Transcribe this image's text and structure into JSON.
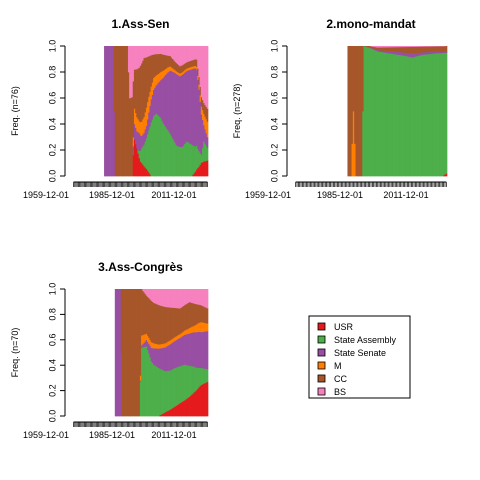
{
  "chart_data": [
    {
      "type": "area",
      "stacking": "proportion",
      "title": "1.Ass-Sen",
      "ylabel": "Freq. (n=76)",
      "ylim": [
        0,
        1
      ],
      "yticks": [
        "0.0",
        "0.2",
        "0.4",
        "0.6",
        "0.8",
        "1.0"
      ],
      "xtick_labels": [
        "1959-12-01",
        "1985-12-01",
        "2011-12-01"
      ],
      "x_start": "1959-12-01",
      "x_end": "2015-12-01",
      "x_step_months": 6,
      "data_start": "1972-12-01",
      "series": [
        {
          "name": "USR",
          "knots": [
            [
              "1972-12-01",
              0
            ],
            [
              "1984-06-01",
              0
            ],
            [
              "1985-06-01",
              0.28
            ],
            [
              "1987-12-01",
              0.12
            ],
            [
              "1990-06-01",
              0.06
            ],
            [
              "1992-06-01",
              0
            ],
            [
              "2009-06-01",
              0
            ],
            [
              "2011-06-01",
              0.05
            ],
            [
              "2013-06-01",
              0.1
            ],
            [
              "2015-12-01",
              0.12
            ]
          ]
        },
        {
          "name": "State Assembly",
          "knots": [
            [
              "1972-12-01",
              0
            ],
            [
              "1986-06-01",
              0
            ],
            [
              "1988-06-01",
              0.12
            ],
            [
              "1990-06-01",
              0.25
            ],
            [
              "1992-06-01",
              0.42
            ],
            [
              "1994-06-01",
              0.45
            ],
            [
              "1997-06-01",
              0.35
            ],
            [
              "2000-06-01",
              0.3
            ],
            [
              "2002-12-01",
              0.22
            ],
            [
              "2005-06-01",
              0.22
            ],
            [
              "2007-06-01",
              0.28
            ],
            [
              "2009-06-01",
              0.25
            ],
            [
              "2011-06-01",
              0.18
            ],
            [
              "2013-06-01",
              0.06
            ],
            [
              "2014-06-01",
              0.15
            ],
            [
              "2015-12-01",
              0.1
            ]
          ]
        },
        {
          "name": "State Senate",
          "knots": [
            [
              "1972-12-01",
              1
            ],
            [
              "1976-06-01",
              1
            ],
            [
              "1977-06-01",
              0
            ],
            [
              "1984-06-01",
              0
            ],
            [
              "1985-06-01",
              0.12
            ],
            [
              "1987-06-01",
              0.15
            ],
            [
              "1988-06-01",
              0.1
            ],
            [
              "1990-06-01",
              0.1
            ],
            [
              "1992-06-01",
              0.18
            ],
            [
              "1994-06-01",
              0.2
            ],
            [
              "1996-06-01",
              0.25
            ],
            [
              "1998-06-01",
              0.35
            ],
            [
              "2000-06-01",
              0.45
            ],
            [
              "2003-06-01",
              0.52
            ],
            [
              "2006-06-01",
              0.55
            ],
            [
              "2009-06-01",
              0.6
            ],
            [
              "2010-12-01",
              0.62
            ],
            [
              "2012-06-01",
              0.48
            ],
            [
              "2013-06-01",
              0.3
            ],
            [
              "2014-06-01",
              0.12
            ],
            [
              "2015-12-01",
              0.08
            ]
          ]
        },
        {
          "name": "M",
          "knots": [
            [
              "1972-12-01",
              0
            ],
            [
              "1984-06-01",
              0
            ],
            [
              "1985-06-01",
              0.12
            ],
            [
              "1987-06-01",
              0.1
            ],
            [
              "1990-06-01",
              0.15
            ],
            [
              "1992-06-01",
              0.1
            ],
            [
              "1995-06-01",
              0.06
            ],
            [
              "1998-06-01",
              0.04
            ],
            [
              "2002-06-01",
              0.02
            ],
            [
              "2011-06-01",
              0.02
            ],
            [
              "2013-06-01",
              0.06
            ],
            [
              "2015-12-01",
              0.12
            ]
          ]
        },
        {
          "name": "CC",
          "knots": [
            [
              "1972-12-01",
              0
            ],
            [
              "1976-06-01",
              0
            ],
            [
              "1977-06-01",
              1
            ],
            [
              "1982-06-01",
              1
            ],
            [
              "1983-06-01",
              0.6
            ],
            [
              "1985-06-01",
              0.3
            ],
            [
              "1987-06-01",
              0.45
            ],
            [
              "1989-06-01",
              0.5
            ],
            [
              "1991-06-01",
              0.32
            ],
            [
              "1993-06-01",
              0.17
            ],
            [
              "1996-06-01",
              0.12
            ],
            [
              "1999-06-01",
              0.08
            ],
            [
              "2002-06-01",
              0.06
            ],
            [
              "2006-06-01",
              0.05
            ],
            [
              "2010-06-01",
              0.05
            ],
            [
              "2012-06-01",
              0.06
            ],
            [
              "2014-06-01",
              0.08
            ],
            [
              "2015-12-01",
              0.1
            ]
          ]
        },
        {
          "name": "BS",
          "knots": [
            [
              "1972-12-01",
              0
            ],
            [
              "1982-06-01",
              0
            ],
            [
              "1983-06-01",
              0.4
            ],
            [
              "1985-06-01",
              0.18
            ],
            [
              "1987-06-01",
              0.18
            ],
            [
              "1989-06-01",
              0.1
            ],
            [
              "1991-06-01",
              0.08
            ],
            [
              "1993-06-01",
              0.06
            ],
            [
              "1996-06-01",
              0.05
            ],
            [
              "2000-06-01",
              0.07
            ],
            [
              "2004-06-01",
              0.15
            ],
            [
              "2008-06-01",
              0.12
            ],
            [
              "2011-06-01",
              0.1
            ],
            [
              "2013-06-01",
              0.38
            ],
            [
              "2015-12-01",
              0.48
            ]
          ]
        }
      ]
    },
    {
      "type": "area",
      "stacking": "proportion",
      "title": "2.mono-mandat",
      "ylabel": "Freq. (n=278)",
      "ylim": [
        0,
        1
      ],
      "yticks": [
        "0.0",
        "0.2",
        "0.4",
        "0.6",
        "0.8",
        "1.0"
      ],
      "xtick_labels": [
        "1959-12-01",
        "1985-12-01",
        "2011-12-01"
      ],
      "x_start": "1959-12-01",
      "x_end": "2015-12-01",
      "x_step_months": 6,
      "data_start": "1979-06-01",
      "series": [
        {
          "name": "USR",
          "knots": [
            [
              "1979-06-01",
              0
            ],
            [
              "2014-06-01",
              0
            ],
            [
              "2015-12-01",
              0.02
            ]
          ]
        },
        {
          "name": "State Assembly",
          "knots": [
            [
              "1979-06-01",
              0
            ],
            [
              "1984-06-01",
              0
            ],
            [
              "1985-06-01",
              1
            ],
            [
              "1986-06-01",
              0.98
            ],
            [
              "1990-06-01",
              0.96
            ],
            [
              "1995-06-01",
              0.95
            ],
            [
              "2000-06-01",
              0.94
            ],
            [
              "2003-06-01",
              0.9
            ],
            [
              "2006-06-01",
              0.94
            ],
            [
              "2008-06-01",
              0.95
            ],
            [
              "2010-06-01",
              0.93
            ],
            [
              "2012-06-01",
              0.96
            ],
            [
              "2015-12-01",
              0.95
            ]
          ]
        },
        {
          "name": "State Senate",
          "knots": [
            [
              "1979-06-01",
              0
            ],
            [
              "1985-06-01",
              0
            ],
            [
              "1990-06-01",
              0.01
            ],
            [
              "2003-06-01",
              0.03
            ],
            [
              "2006-06-01",
              0.02
            ],
            [
              "2015-12-01",
              0.01
            ]
          ]
        },
        {
          "name": "M",
          "knots": [
            [
              "1979-06-01",
              0
            ],
            [
              "1980-06-01",
              0
            ],
            [
              "1981-06-01",
              0.5
            ],
            [
              "1982-06-01",
              0
            ],
            [
              "2015-12-01",
              0
            ]
          ]
        },
        {
          "name": "CC",
          "knots": [
            [
              "1979-06-01",
              1
            ],
            [
              "1980-06-01",
              1
            ],
            [
              "1981-06-01",
              0.5
            ],
            [
              "1982-06-01",
              1
            ],
            [
              "1984-06-01",
              1
            ],
            [
              "1985-06-01",
              0
            ],
            [
              "1990-06-01",
              0.02
            ],
            [
              "2003-06-01",
              0.05
            ],
            [
              "2010-06-01",
              0.04
            ],
            [
              "2015-12-01",
              0.04
            ]
          ]
        },
        {
          "name": "BS",
          "knots": [
            [
              "1979-06-01",
              0
            ],
            [
              "1987-06-01",
              0
            ],
            [
              "1990-06-01",
              0.01
            ],
            [
              "2015-12-01",
              0
            ]
          ]
        }
      ]
    },
    {
      "type": "area",
      "stacking": "proportion",
      "title": "3.Ass-Congrès",
      "ylabel": "Freq. (n=70)",
      "ylim": [
        0,
        1
      ],
      "yticks": [
        "0.0",
        "0.2",
        "0.4",
        "0.6",
        "0.8",
        "1.0"
      ],
      "xtick_labels": [
        "1959-12-01",
        "1985-12-01",
        "2011-12-01"
      ],
      "x_start": "1959-12-01",
      "x_end": "2015-12-01",
      "x_step_months": 6,
      "data_start": "1977-06-01",
      "series": [
        {
          "name": "USR",
          "knots": [
            [
              "1977-06-01",
              0
            ],
            [
              "1995-06-01",
              0
            ],
            [
              "1997-06-01",
              0.02
            ],
            [
              "2000-06-01",
              0.05
            ],
            [
              "2004-06-01",
              0.1
            ],
            [
              "2008-06-01",
              0.15
            ],
            [
              "2011-06-01",
              0.2
            ],
            [
              "2013-06-01",
              0.25
            ],
            [
              "2015-12-01",
              0.27
            ]
          ]
        },
        {
          "name": "State Assembly",
          "knots": [
            [
              "1977-06-01",
              0
            ],
            [
              "1987-06-01",
              0
            ],
            [
              "1988-06-01",
              0.55
            ],
            [
              "1990-06-01",
              0.55
            ],
            [
              "1992-06-01",
              0.4
            ],
            [
              "1995-06-01",
              0.35
            ],
            [
              "1998-06-01",
              0.3
            ],
            [
              "2002-06-01",
              0.3
            ],
            [
              "2006-06-01",
              0.28
            ],
            [
              "2009-06-01",
              0.22
            ],
            [
              "2012-06-01",
              0.15
            ],
            [
              "2015-12-01",
              0.1
            ]
          ]
        },
        {
          "name": "State Senate",
          "knots": [
            [
              "1977-06-01",
              1
            ],
            [
              "1979-06-01",
              1
            ],
            [
              "1980-06-01",
              0
            ],
            [
              "1987-06-01",
              0
            ],
            [
              "1990-06-01",
              0.05
            ],
            [
              "1993-06-01",
              0.12
            ],
            [
              "1996-06-01",
              0.15
            ],
            [
              "2000-06-01",
              0.2
            ],
            [
              "2004-06-01",
              0.22
            ],
            [
              "2008-06-01",
              0.25
            ],
            [
              "2012-06-01",
              0.28
            ],
            [
              "2015-12-01",
              0.3
            ]
          ]
        },
        {
          "name": "M",
          "knots": [
            [
              "1977-06-01",
              0
            ],
            [
              "1987-06-01",
              0
            ],
            [
              "1988-06-01",
              0.08
            ],
            [
              "1990-06-01",
              0.05
            ],
            [
              "1995-06-01",
              0.03
            ],
            [
              "2005-06-01",
              0.03
            ],
            [
              "2010-06-01",
              0.05
            ],
            [
              "2013-06-01",
              0.08
            ],
            [
              "2015-12-01",
              0.06
            ]
          ]
        },
        {
          "name": "CC",
          "knots": [
            [
              "1977-06-01",
              0
            ],
            [
              "1979-06-01",
              0
            ],
            [
              "1980-06-01",
              1
            ],
            [
              "1987-06-01",
              1
            ],
            [
              "1988-06-01",
              0.37
            ],
            [
              "1990-06-01",
              0.3
            ],
            [
              "1993-06-01",
              0.3
            ],
            [
              "1996-06-01",
              0.28
            ],
            [
              "2000-06-01",
              0.25
            ],
            [
              "2004-06-01",
              0.2
            ],
            [
              "2008-06-01",
              0.2
            ],
            [
              "2012-06-01",
              0.14
            ],
            [
              "2015-12-01",
              0.12
            ]
          ]
        },
        {
          "name": "BS",
          "knots": [
            [
              "1977-06-01",
              0
            ],
            [
              "1988-06-01",
              0
            ],
            [
              "1990-06-01",
              0.05
            ],
            [
              "1993-06-01",
              0.1
            ],
            [
              "1996-06-01",
              0.12
            ],
            [
              "2000-06-01",
              0.14
            ],
            [
              "2004-06-01",
              0.15
            ],
            [
              "2008-06-01",
              0.1
            ],
            [
              "2012-06-01",
              0.12
            ],
            [
              "2015-12-01",
              0.15
            ]
          ]
        }
      ]
    }
  ],
  "legend": {
    "placement": "bottom-right",
    "entries": [
      {
        "name": "USR",
        "color": "#E41A1C"
      },
      {
        "name": "State Assembly",
        "color": "#4DAF4A"
      },
      {
        "name": "State Senate",
        "color": "#984EA3"
      },
      {
        "name": "M",
        "color": "#FF7F00"
      },
      {
        "name": "CC",
        "color": "#A65628"
      },
      {
        "name": "BS",
        "color": "#F781BF"
      }
    ]
  }
}
